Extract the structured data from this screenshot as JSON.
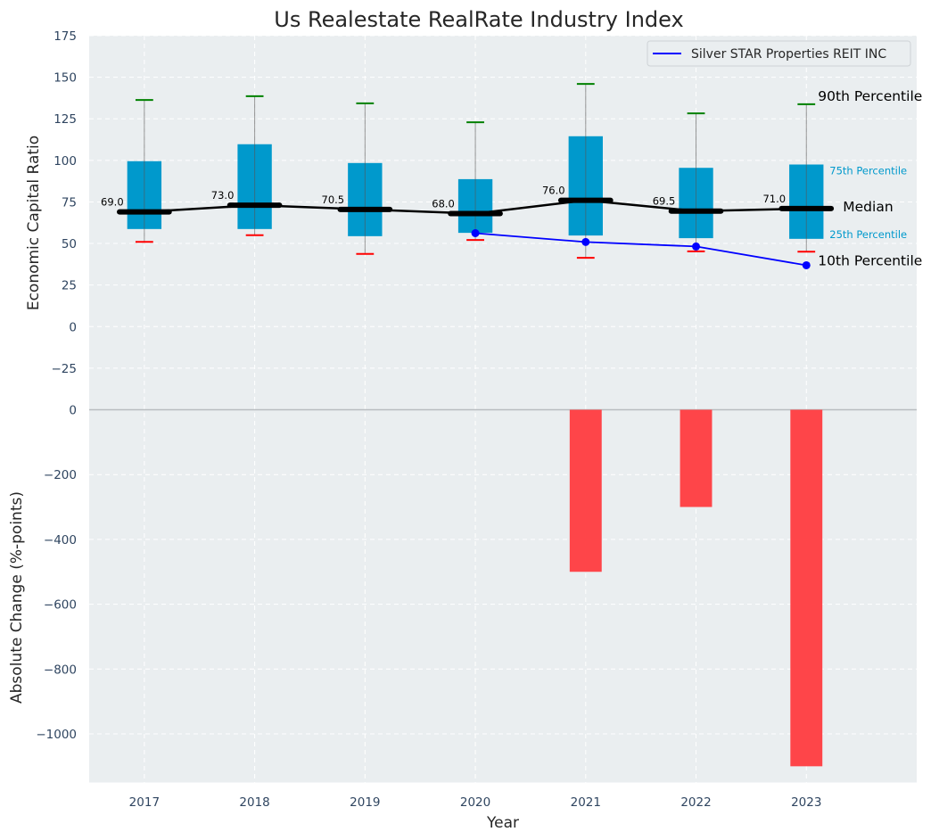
{
  "chart_data": [
    {
      "panel": "top",
      "type": "box",
      "title": "Us Realestate RealRate Industry Index",
      "xlabel": "",
      "ylabel": "Economic Capital Ratio",
      "ylim": [
        -50,
        175
      ],
      "yticks": [
        175,
        150,
        125,
        100,
        75,
        50,
        25,
        0,
        -25
      ],
      "ytick_labels": [
        "175",
        "150",
        "125",
        "100",
        "75",
        "50",
        "25",
        "0",
        "−25"
      ],
      "grid": true,
      "categories": [
        "2017",
        "2018",
        "2019",
        "2020",
        "2021",
        "2022",
        "2023"
      ],
      "x": [
        2017,
        2018,
        2019,
        2020,
        2021,
        2022,
        2023
      ],
      "series": [
        {
          "name": "90th Percentile",
          "values": [
            136.3,
            138.6,
            134.3,
            122.9,
            146.0,
            128.3,
            133.8
          ]
        },
        {
          "name": "75th Percentile",
          "values": [
            99.5,
            109.7,
            98.4,
            88.7,
            114.5,
            95.5,
            97.5
          ]
        },
        {
          "name": "Median",
          "values": [
            69.0,
            73.0,
            70.5,
            68.0,
            76.0,
            69.5,
            71.0
          ]
        },
        {
          "name": "25th Percentile",
          "values": [
            58.7,
            58.7,
            54.4,
            56.4,
            54.8,
            53.2,
            52.8
          ]
        },
        {
          "name": "10th Percentile",
          "values": [
            51.0,
            55.0,
            43.7,
            52.1,
            41.4,
            45.3,
            45.1
          ]
        }
      ],
      "median_labels": [
        "69.0",
        "73.0",
        "70.5",
        "68.0",
        "76.0",
        "69.5",
        "71.0"
      ],
      "company": {
        "name": "Silver STAR Properties REIT INC",
        "x": [
          2020,
          2021,
          2022,
          2023
        ],
        "values": [
          56.2,
          50.9,
          48.2,
          36.9
        ]
      },
      "annotations": {
        "p90": "90th Percentile",
        "p75": "75th Percentile",
        "median": "Median",
        "p25": "25th Percentile",
        "p10": "10th Percentile"
      },
      "legend": {
        "entries": [
          "Silver STAR Properties REIT INC"
        ],
        "placement": "top-right"
      },
      "colors": {
        "box": "#0099cc",
        "median": "#000000",
        "p90_cap": "#008000",
        "p10_cap": "#ff0000",
        "company": "#0000ff",
        "percentile_text": "#0099cc",
        "background": "#eaeef0"
      }
    },
    {
      "panel": "bottom",
      "type": "bar",
      "xlabel": "Year",
      "ylabel": "Absolute Change (%-points)",
      "ylim": [
        -1150,
        0
      ],
      "yticks": [
        0,
        -200,
        -400,
        -600,
        -800,
        -1000
      ],
      "ytick_labels": [
        "0",
        "−200",
        "−400",
        "−600",
        "−800",
        "−1000"
      ],
      "grid": true,
      "categories": [
        "2017",
        "2018",
        "2019",
        "2020",
        "2021",
        "2022",
        "2023"
      ],
      "x": [
        2017,
        2018,
        2019,
        2020,
        2021,
        2022,
        2023
      ],
      "xlim": [
        2016.5,
        2024.0
      ],
      "values": [
        null,
        null,
        null,
        null,
        -500,
        -300,
        -1100
      ],
      "colors": {
        "bar": "#ff3b3f",
        "background": "#eaeef0"
      }
    }
  ]
}
